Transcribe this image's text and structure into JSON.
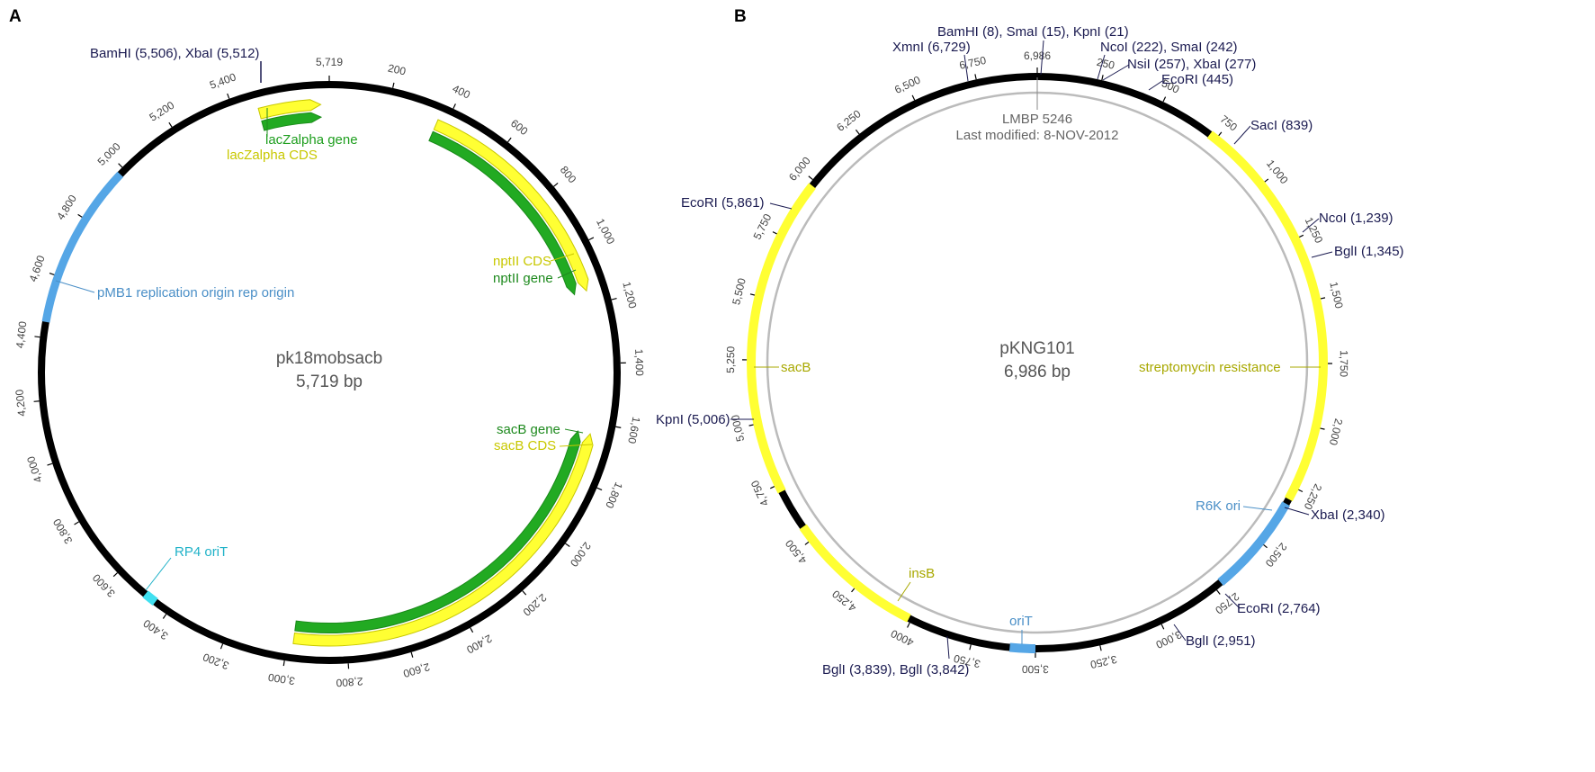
{
  "panels": {
    "A": {
      "letter": "A",
      "name": "pk18mobsacb",
      "size_label": "5,719 bp",
      "length": 5719,
      "ticks": [
        "5,719",
        "200",
        "400",
        "600",
        "800",
        "1,000",
        "1,200",
        "1,400",
        "1,600",
        "1,800",
        "2,000",
        "2,200",
        "2,400",
        "2,600",
        "2,800",
        "3,000",
        "3,200",
        "3,400",
        "3,600",
        "3,800",
        "4,000",
        "4,200",
        "4,400",
        "4,600",
        "4,800",
        "5,000",
        "5,200",
        "5,400"
      ],
      "sites": [
        "BamHI (5,506), XbaI (5,512)"
      ],
      "features": [
        {
          "label": "lacZalpha gene",
          "color": "#1e9e1e"
        },
        {
          "label": "lacZalpha CDS",
          "color": "#c8c800"
        },
        {
          "label": "nptII CDS",
          "color": "#c8c800"
        },
        {
          "label": "nptII gene",
          "color": "#1e8a1e"
        },
        {
          "label": "sacB gene",
          "color": "#1e8a1e"
        },
        {
          "label": "sacB CDS",
          "color": "#c8c800"
        },
        {
          "label": "pMB1 replication origin rep origin",
          "color": "#4a8fc7"
        },
        {
          "label": "RP4 oriT",
          "color": "#20b2c8"
        }
      ]
    },
    "B": {
      "letter": "B",
      "name": "pKNG101",
      "size_label": "6,986 bp",
      "length": 6986,
      "lmbp": "LMBP 5246",
      "modified": "Last modified: 8-NOV-2012",
      "ticks": [
        "6,986",
        "250",
        "500",
        "750",
        "1,000",
        "1,250",
        "1,500",
        "1,750",
        "2,000",
        "2,250",
        "2,500",
        "2,750",
        "3,000",
        "3,250",
        "3,500",
        "3,750",
        "4000",
        "4,250",
        "4,500",
        "4,750",
        "5,000",
        "5,250",
        "5,500",
        "5,750",
        "6,000",
        "6,250",
        "6,500",
        "6,750"
      ],
      "sites": [
        "BamHI (8), SmaI (15), KpnI (21)",
        "XmnI (6,729)",
        "NcoI (222), SmaI (242)",
        "NsiI (257), XbaI (277)",
        "EcoRI (445)",
        "SacI (839)",
        "NcoI (1,239)",
        "BglI (1,345)",
        "XbaI (2,340)",
        "EcoRI (2,764)",
        "BglI (2,951)",
        "BglI (3,839), BglI (3,842)",
        "KpnI (5,006)",
        "EcoRI (5,861)"
      ],
      "features": [
        {
          "label": "streptomycin resistance",
          "color": "#b8b800"
        },
        {
          "label": "R6K ori",
          "color": "#4a8fc7"
        },
        {
          "label": "oriT",
          "color": "#4a8fc7"
        },
        {
          "label": "insB",
          "color": "#b8b800"
        },
        {
          "label": "sacB",
          "color": "#b8b800"
        }
      ]
    }
  },
  "colors": {
    "backbone": "#000000",
    "yellow": "#ffff33",
    "green": "#22aa22",
    "blue": "#55a6e6",
    "cyan": "#40e0f0"
  }
}
